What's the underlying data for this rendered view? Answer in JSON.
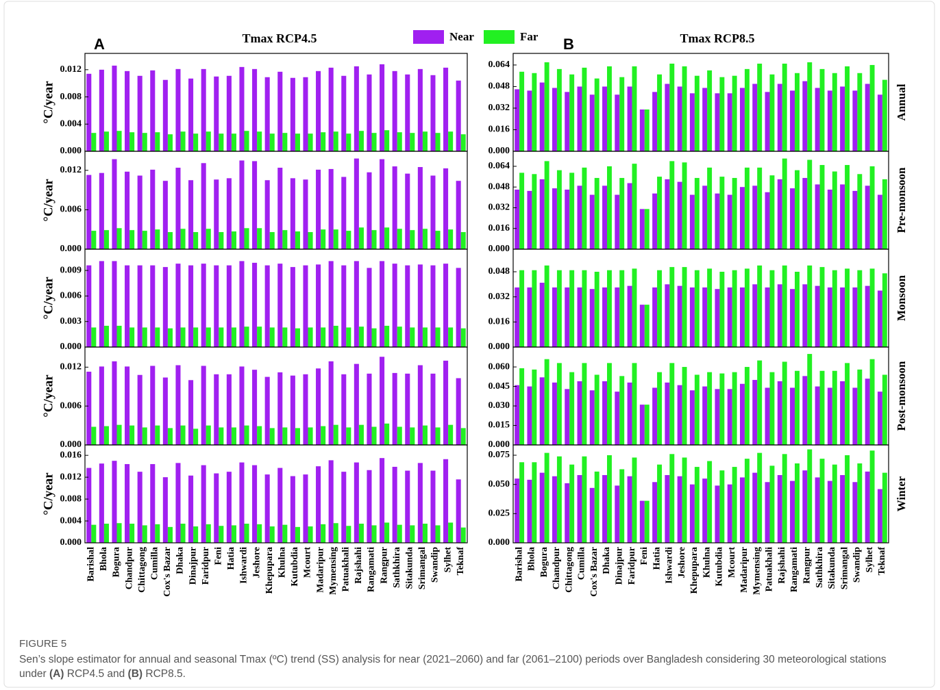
{
  "caption": {
    "label": "FIGURE 5",
    "text": [
      "Sen’s slope estimator for annual and seasonal Tmax (ºC) trend (SS) analysis for near (2021–2060) and far (2061–2100) periods over Bangladesh considering 30 meteorological stations under ",
      "(A)",
      " RCP4.5 and ",
      "(B)",
      " RCP8.5."
    ]
  },
  "chart_data": [
    {
      "type": "bar",
      "panel_label": "A",
      "title": "Tmax RCP4.5",
      "ylabel": "°C/year",
      "ylim": [
        0,
        0.0144
      ],
      "yticks": [
        {
          "value": 0,
          "label": "0.000"
        },
        0.004,
        0.008,
        0.012
      ],
      "series": [
        {
          "name": "Near",
          "color": "#a020f0",
          "values": [
            0.0114,
            0.012,
            0.0126,
            0.0118,
            0.0111,
            0.0119,
            0.0105,
            0.0121,
            0.0107,
            0.0121,
            0.011,
            0.0111,
            0.0124,
            0.0121,
            0.0109,
            0.0117,
            0.0108,
            0.0109,
            0.0118,
            0.0123,
            0.0111,
            0.0125,
            0.0113,
            0.0128,
            0.0118,
            0.0113,
            0.0121,
            0.0112,
            0.0123,
            0.0104
          ]
        },
        {
          "name": "Far",
          "color": "#22f022",
          "values": [
            0.0027,
            0.0029,
            0.003,
            0.0028,
            0.0027,
            0.0028,
            0.0025,
            0.0029,
            0.0026,
            0.0029,
            0.0026,
            0.0026,
            0.003,
            0.0029,
            0.0026,
            0.0027,
            0.0026,
            0.0026,
            0.0028,
            0.0029,
            0.0026,
            0.003,
            0.0027,
            0.0031,
            0.0028,
            0.0027,
            0.0029,
            0.0027,
            0.0029,
            0.0025
          ]
        }
      ]
    },
    {
      "type": "bar",
      "ylabel": "°C/year",
      "ylim": [
        0,
        0.0149
      ],
      "yticks": [
        {
          "value": 0,
          "label": "0.000"
        },
        0.006,
        0.012
      ],
      "series": [
        {
          "color": "#a020f0",
          "values": [
            0.0113,
            0.0116,
            0.0137,
            0.0118,
            0.0112,
            0.0121,
            0.0104,
            0.0124,
            0.0105,
            0.0131,
            0.0106,
            0.0108,
            0.0135,
            0.0134,
            0.0105,
            0.0124,
            0.0108,
            0.0106,
            0.0121,
            0.0122,
            0.011,
            0.0138,
            0.0117,
            0.0137,
            0.0126,
            0.0115,
            0.0125,
            0.0112,
            0.0123,
            0.0104
          ]
        },
        {
          "color": "#22f022",
          "values": [
            0.0028,
            0.0029,
            0.0032,
            0.0029,
            0.0028,
            0.003,
            0.0026,
            0.0031,
            0.0026,
            0.0031,
            0.0026,
            0.0027,
            0.0032,
            0.0032,
            0.0026,
            0.0029,
            0.0027,
            0.0026,
            0.003,
            0.003,
            0.0028,
            0.0033,
            0.0029,
            0.0033,
            0.0031,
            0.0029,
            0.0031,
            0.0028,
            0.003,
            0.0026
          ]
        }
      ]
    },
    {
      "type": "bar",
      "ylabel": "°C/year",
      "ylim": [
        0,
        0.0115
      ],
      "yticks": [
        {
          "value": 0,
          "label": "0.000"
        },
        0.003,
        0.006,
        0.009
      ],
      "series": [
        {
          "color": "#a020f0",
          "values": [
            0.0096,
            0.0101,
            0.0101,
            0.0096,
            0.0096,
            0.0096,
            0.0094,
            0.0098,
            0.0096,
            0.0098,
            0.0096,
            0.0096,
            0.0101,
            0.0099,
            0.0096,
            0.0098,
            0.0094,
            0.0096,
            0.0097,
            0.0101,
            0.0096,
            0.0101,
            0.0093,
            0.0101,
            0.0098,
            0.0096,
            0.0097,
            0.0096,
            0.0098,
            0.0093
          ]
        },
        {
          "color": "#22f022",
          "values": [
            0.0023,
            0.0025,
            0.0025,
            0.0023,
            0.0023,
            0.0023,
            0.0022,
            0.0023,
            0.0023,
            0.0023,
            0.0023,
            0.0023,
            0.0024,
            0.0024,
            0.0023,
            0.0023,
            0.0022,
            0.0023,
            0.0023,
            0.0025,
            0.0023,
            0.0024,
            0.0022,
            0.0025,
            0.0024,
            0.0023,
            0.0023,
            0.0023,
            0.0023,
            0.0022
          ]
        }
      ]
    },
    {
      "type": "bar",
      "ylabel": "°C/year",
      "ylim": [
        0,
        0.0151
      ],
      "yticks": [
        {
          "value": 0,
          "label": "0.000"
        },
        0.006,
        0.012
      ],
      "series": [
        {
          "color": "#a020f0",
          "values": [
            0.0113,
            0.0121,
            0.0129,
            0.0121,
            0.0108,
            0.0122,
            0.0104,
            0.0123,
            0.01,
            0.0122,
            0.0109,
            0.0109,
            0.0121,
            0.0116,
            0.0105,
            0.0112,
            0.0107,
            0.0109,
            0.0118,
            0.0129,
            0.0109,
            0.0125,
            0.011,
            0.0136,
            0.0111,
            0.011,
            0.0123,
            0.011,
            0.013,
            0.0103
          ]
        },
        {
          "color": "#22f022",
          "values": [
            0.0028,
            0.0029,
            0.0031,
            0.003,
            0.0027,
            0.003,
            0.0026,
            0.003,
            0.0025,
            0.003,
            0.0027,
            0.0027,
            0.003,
            0.0029,
            0.0026,
            0.0027,
            0.0026,
            0.0027,
            0.0029,
            0.0031,
            0.0027,
            0.0031,
            0.0028,
            0.0033,
            0.0028,
            0.0027,
            0.003,
            0.0027,
            0.0031,
            0.0026
          ]
        }
      ]
    },
    {
      "type": "bar",
      "ylabel": "°C/year",
      "ylim": [
        0,
        0.0179
      ],
      "yticks": [
        {
          "value": 0,
          "label": "0.000"
        },
        0.004,
        0.008,
        0.012,
        0.016
      ],
      "categories": [
        "Barishal",
        "Bhola",
        "Bogura",
        "Chandpur",
        "Chittagong",
        "Cumilla",
        "Cox's Bazar",
        "Dhaka",
        "Dinajpur",
        "Faridpur",
        "Feni",
        "Hatia",
        "Ishwardi",
        "Jeshore",
        "Khepupara",
        "Khulna",
        "Kutubdia",
        "Mcourt",
        "Madaripur",
        "Mymensing",
        "Patuakhali",
        "Rajshahi",
        "Rangamati",
        "Rangpur",
        "Sathkhira",
        "Sitakunda",
        "Srimangal",
        "Swandip",
        "Sylhet",
        "Teknaf"
      ],
      "series": [
        {
          "color": "#a020f0",
          "values": [
            0.0137,
            0.0145,
            0.015,
            0.0144,
            0.013,
            0.0144,
            0.012,
            0.0146,
            0.0123,
            0.0142,
            0.0127,
            0.013,
            0.0147,
            0.0142,
            0.0125,
            0.0137,
            0.0122,
            0.0125,
            0.014,
            0.0151,
            0.013,
            0.0147,
            0.0133,
            0.0155,
            0.0139,
            0.0132,
            0.0146,
            0.0132,
            0.0153,
            0.0116
          ]
        },
        {
          "color": "#22f022",
          "values": [
            0.0033,
            0.0035,
            0.0036,
            0.0035,
            0.0032,
            0.0034,
            0.0029,
            0.0035,
            0.003,
            0.0034,
            0.0031,
            0.0032,
            0.0035,
            0.0034,
            0.003,
            0.0033,
            0.0029,
            0.003,
            0.0034,
            0.0036,
            0.0031,
            0.0035,
            0.0032,
            0.0037,
            0.0033,
            0.0032,
            0.0035,
            0.0032,
            0.0037,
            0.0028
          ]
        }
      ]
    },
    {
      "type": "bar",
      "panel_label": "B",
      "title": "Tmax RCP8.5",
      "ylabel_right": "Annual",
      "ylim": [
        0,
        0.0726
      ],
      "yticks": [
        {
          "value": 0,
          "label": "0.000"
        },
        0.016,
        0.032,
        0.048,
        0.064
      ],
      "series": [
        {
          "color": "#a020f0",
          "values": [
            0.046,
            0.045,
            0.051,
            0.047,
            0.044,
            0.048,
            0.042,
            0.048,
            0.042,
            0.048,
            0.031,
            0.044,
            0.05,
            0.048,
            0.043,
            0.047,
            0.043,
            0.043,
            0.047,
            0.05,
            0.044,
            0.05,
            0.045,
            0.052,
            0.047,
            0.045,
            0.048,
            0.045,
            0.05,
            0.042
          ]
        },
        {
          "color": "#22f022",
          "values": [
            0.059,
            0.058,
            0.066,
            0.061,
            0.057,
            0.062,
            0.054,
            0.063,
            0.055,
            0.063,
            0.031,
            0.057,
            0.065,
            0.063,
            0.056,
            0.06,
            0.055,
            0.056,
            0.061,
            0.065,
            0.057,
            0.065,
            0.058,
            0.066,
            0.061,
            0.058,
            0.063,
            0.058,
            0.064,
            0.053
          ]
        }
      ]
    },
    {
      "type": "bar",
      "ylabel_right": "Pre-monsoon",
      "ylim": [
        0,
        0.0756
      ],
      "yticks": [
        {
          "value": 0,
          "label": "0.000"
        },
        0.016,
        0.032,
        0.048,
        0.064
      ],
      "series": [
        {
          "color": "#a020f0",
          "values": [
            0.046,
            0.045,
            0.054,
            0.047,
            0.046,
            0.049,
            0.042,
            0.049,
            0.042,
            0.051,
            0.031,
            0.043,
            0.054,
            0.052,
            0.042,
            0.049,
            0.043,
            0.042,
            0.048,
            0.049,
            0.044,
            0.054,
            0.047,
            0.055,
            0.05,
            0.046,
            0.05,
            0.045,
            0.049,
            0.042
          ]
        },
        {
          "color": "#22f022",
          "values": [
            0.059,
            0.058,
            0.068,
            0.061,
            0.059,
            0.063,
            0.055,
            0.064,
            0.055,
            0.066,
            0.031,
            0.056,
            0.068,
            0.067,
            0.055,
            0.063,
            0.056,
            0.055,
            0.063,
            0.063,
            0.057,
            0.07,
            0.061,
            0.069,
            0.065,
            0.06,
            0.065,
            0.058,
            0.064,
            0.054
          ]
        }
      ]
    },
    {
      "type": "bar",
      "ylabel_right": "Monsoon",
      "ylim": [
        0,
        0.0624
      ],
      "yticks": [
        {
          "value": 0,
          "label": "0.000"
        },
        0.016,
        0.032,
        0.048
      ],
      "series": [
        {
          "color": "#a020f0",
          "values": [
            0.038,
            0.038,
            0.041,
            0.038,
            0.038,
            0.038,
            0.037,
            0.038,
            0.038,
            0.039,
            0.027,
            0.038,
            0.04,
            0.039,
            0.038,
            0.038,
            0.037,
            0.038,
            0.038,
            0.04,
            0.038,
            0.04,
            0.037,
            0.04,
            0.039,
            0.038,
            0.038,
            0.038,
            0.039,
            0.036
          ]
        },
        {
          "color": "#22f022",
          "values": [
            0.049,
            0.049,
            0.052,
            0.049,
            0.049,
            0.049,
            0.048,
            0.049,
            0.049,
            0.05,
            0.027,
            0.049,
            0.051,
            0.051,
            0.049,
            0.05,
            0.048,
            0.049,
            0.05,
            0.052,
            0.049,
            0.052,
            0.048,
            0.052,
            0.051,
            0.049,
            0.05,
            0.049,
            0.05,
            0.047
          ]
        }
      ]
    },
    {
      "type": "bar",
      "ylabel_right": "Post-monsoon",
      "ylim": [
        0,
        0.0753
      ],
      "yticks": [
        {
          "value": 0,
          "label": "0.000"
        },
        0.015,
        {
          "value": 0.03,
          "label": "0.030"
        },
        0.045,
        {
          "value": 0.06,
          "label": "0.060"
        }
      ],
      "series": [
        {
          "color": "#a020f0",
          "values": [
            0.046,
            0.045,
            0.052,
            0.048,
            0.043,
            0.049,
            0.042,
            0.049,
            0.041,
            0.048,
            0.031,
            0.044,
            0.048,
            0.046,
            0.042,
            0.045,
            0.043,
            0.043,
            0.047,
            0.05,
            0.044,
            0.049,
            0.044,
            0.053,
            0.045,
            0.044,
            0.049,
            0.044,
            0.051,
            0.041
          ]
        },
        {
          "color": "#22f022",
          "values": [
            0.059,
            0.058,
            0.066,
            0.063,
            0.056,
            0.063,
            0.054,
            0.063,
            0.053,
            0.063,
            0.031,
            0.056,
            0.063,
            0.06,
            0.054,
            0.056,
            0.055,
            0.056,
            0.06,
            0.065,
            0.056,
            0.064,
            0.057,
            0.07,
            0.057,
            0.057,
            0.063,
            0.058,
            0.066,
            0.054
          ]
        }
      ]
    },
    {
      "type": "bar",
      "ylabel_right": "Winter",
      "ylim": [
        0,
        0.0838
      ],
      "yticks": [
        {
          "value": 0,
          "label": "0.000"
        },
        0.025,
        {
          "value": 0.05,
          "label": "0.050"
        },
        0.075
      ],
      "categories": [
        "Barishal",
        "Bhola",
        "Bogura",
        "Chandpur",
        "Chittagong",
        "Cumilla",
        "Cox's Bazar",
        "Dhaka",
        "Dinajpur",
        "Faridpur",
        "Feni",
        "Hatia",
        "Ishwardi",
        "Jeshore",
        "Khepupara",
        "Khulna",
        "Kutubdia",
        "Mcourt",
        "Madaripur",
        "Mymensing",
        "Patuakhali",
        "Rajshahi",
        "Rangamati",
        "Rangpur",
        "Sathkhira",
        "Sitakunda",
        "Srimangal",
        "Swandip",
        "Sylhet",
        "Teknaf"
      ],
      "series": [
        {
          "color": "#a020f0",
          "values": [
            0.055,
            0.054,
            0.06,
            0.057,
            0.051,
            0.058,
            0.047,
            0.058,
            0.049,
            0.057,
            0.036,
            0.052,
            0.058,
            0.057,
            0.05,
            0.055,
            0.049,
            0.05,
            0.056,
            0.06,
            0.052,
            0.058,
            0.053,
            0.062,
            0.056,
            0.053,
            0.058,
            0.052,
            0.061,
            0.046
          ]
        },
        {
          "color": "#22f022",
          "values": [
            0.069,
            0.069,
            0.077,
            0.074,
            0.067,
            0.074,
            0.061,
            0.075,
            0.063,
            0.073,
            0.036,
            0.067,
            0.076,
            0.073,
            0.065,
            0.07,
            0.062,
            0.065,
            0.072,
            0.077,
            0.066,
            0.076,
            0.068,
            0.08,
            0.072,
            0.067,
            0.075,
            0.068,
            0.079,
            0.06
          ]
        }
      ]
    }
  ]
}
